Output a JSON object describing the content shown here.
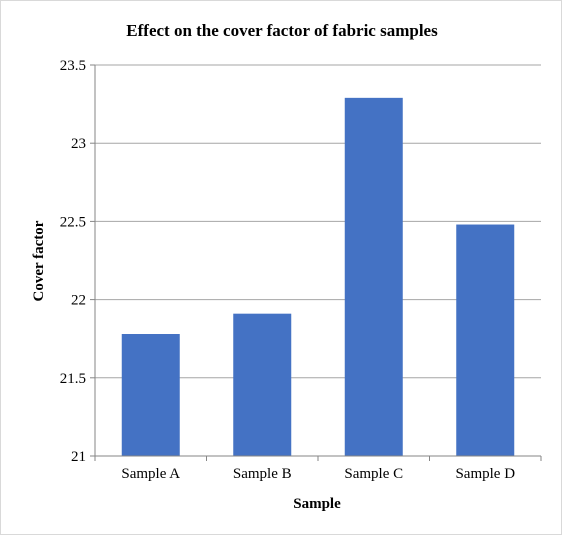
{
  "chart_data": {
    "type": "bar",
    "title": "Effect on the cover factor of fabric samples",
    "xlabel": "Sample",
    "ylabel": "Cover factor",
    "categories": [
      "Sample A",
      "Sample B",
      "Sample C",
      "Sample D"
    ],
    "values": [
      21.78,
      21.91,
      23.29,
      22.48
    ],
    "ylim": [
      21,
      23.5
    ],
    "yticks": [
      "21",
      "21.5",
      "22",
      "22.5",
      "23",
      "23.5"
    ],
    "grid": true,
    "bar_color": "#4472C4",
    "grid_color": "#a6a6a6"
  }
}
